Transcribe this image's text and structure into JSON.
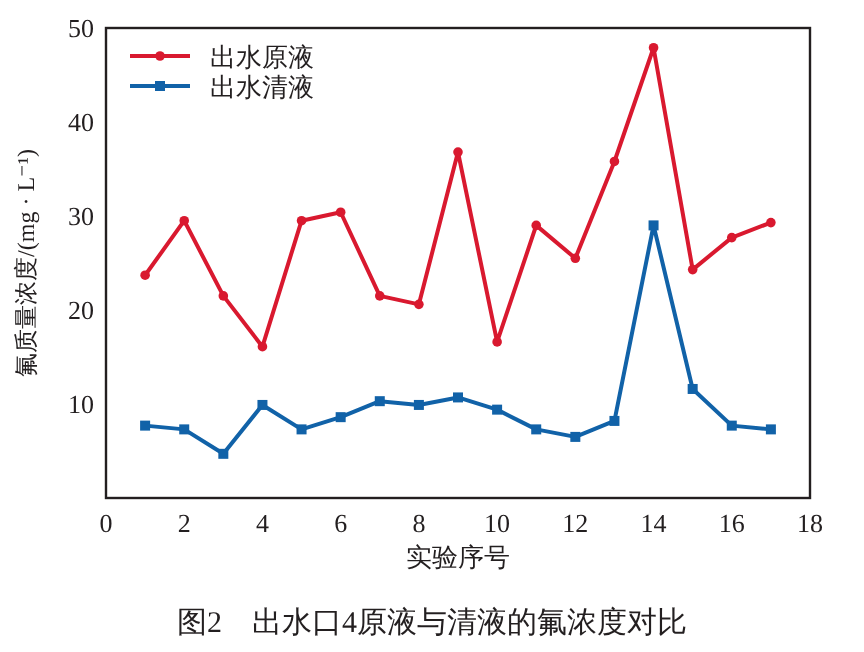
{
  "chart_data": {
    "type": "line",
    "title": "图2　出水口4原液与清液的氟浓度对比",
    "xlabel": "实验序号",
    "ylabel": "氟质量浓度/(mg · L⁻¹)",
    "x": [
      1,
      2,
      3,
      4,
      5,
      6,
      7,
      8,
      9,
      10,
      11,
      12,
      13,
      14,
      15,
      16,
      17
    ],
    "series": [
      {
        "name": "出水原液",
        "color": "#d9192f",
        "marker": "circle",
        "values": [
          23.7,
          29.5,
          21.5,
          16.1,
          29.5,
          30.4,
          21.5,
          20.6,
          36.8,
          16.6,
          29.0,
          25.5,
          35.8,
          47.9,
          24.3,
          27.7,
          29.3
        ]
      },
      {
        "name": "出水清液",
        "color": "#1162a8",
        "marker": "square",
        "values": [
          7.7,
          7.3,
          4.7,
          9.9,
          7.3,
          8.6,
          10.3,
          9.9,
          10.7,
          9.4,
          7.3,
          6.5,
          8.2,
          29.0,
          11.6,
          7.7,
          7.3
        ]
      }
    ],
    "xlim": [
      0,
      18
    ],
    "xticks": [
      0,
      2,
      4,
      6,
      8,
      10,
      12,
      14,
      16,
      18
    ],
    "ylim": [
      0,
      50
    ],
    "yticks": [
      10,
      20,
      30,
      40,
      50
    ],
    "legend": "top left",
    "grid": false
  }
}
